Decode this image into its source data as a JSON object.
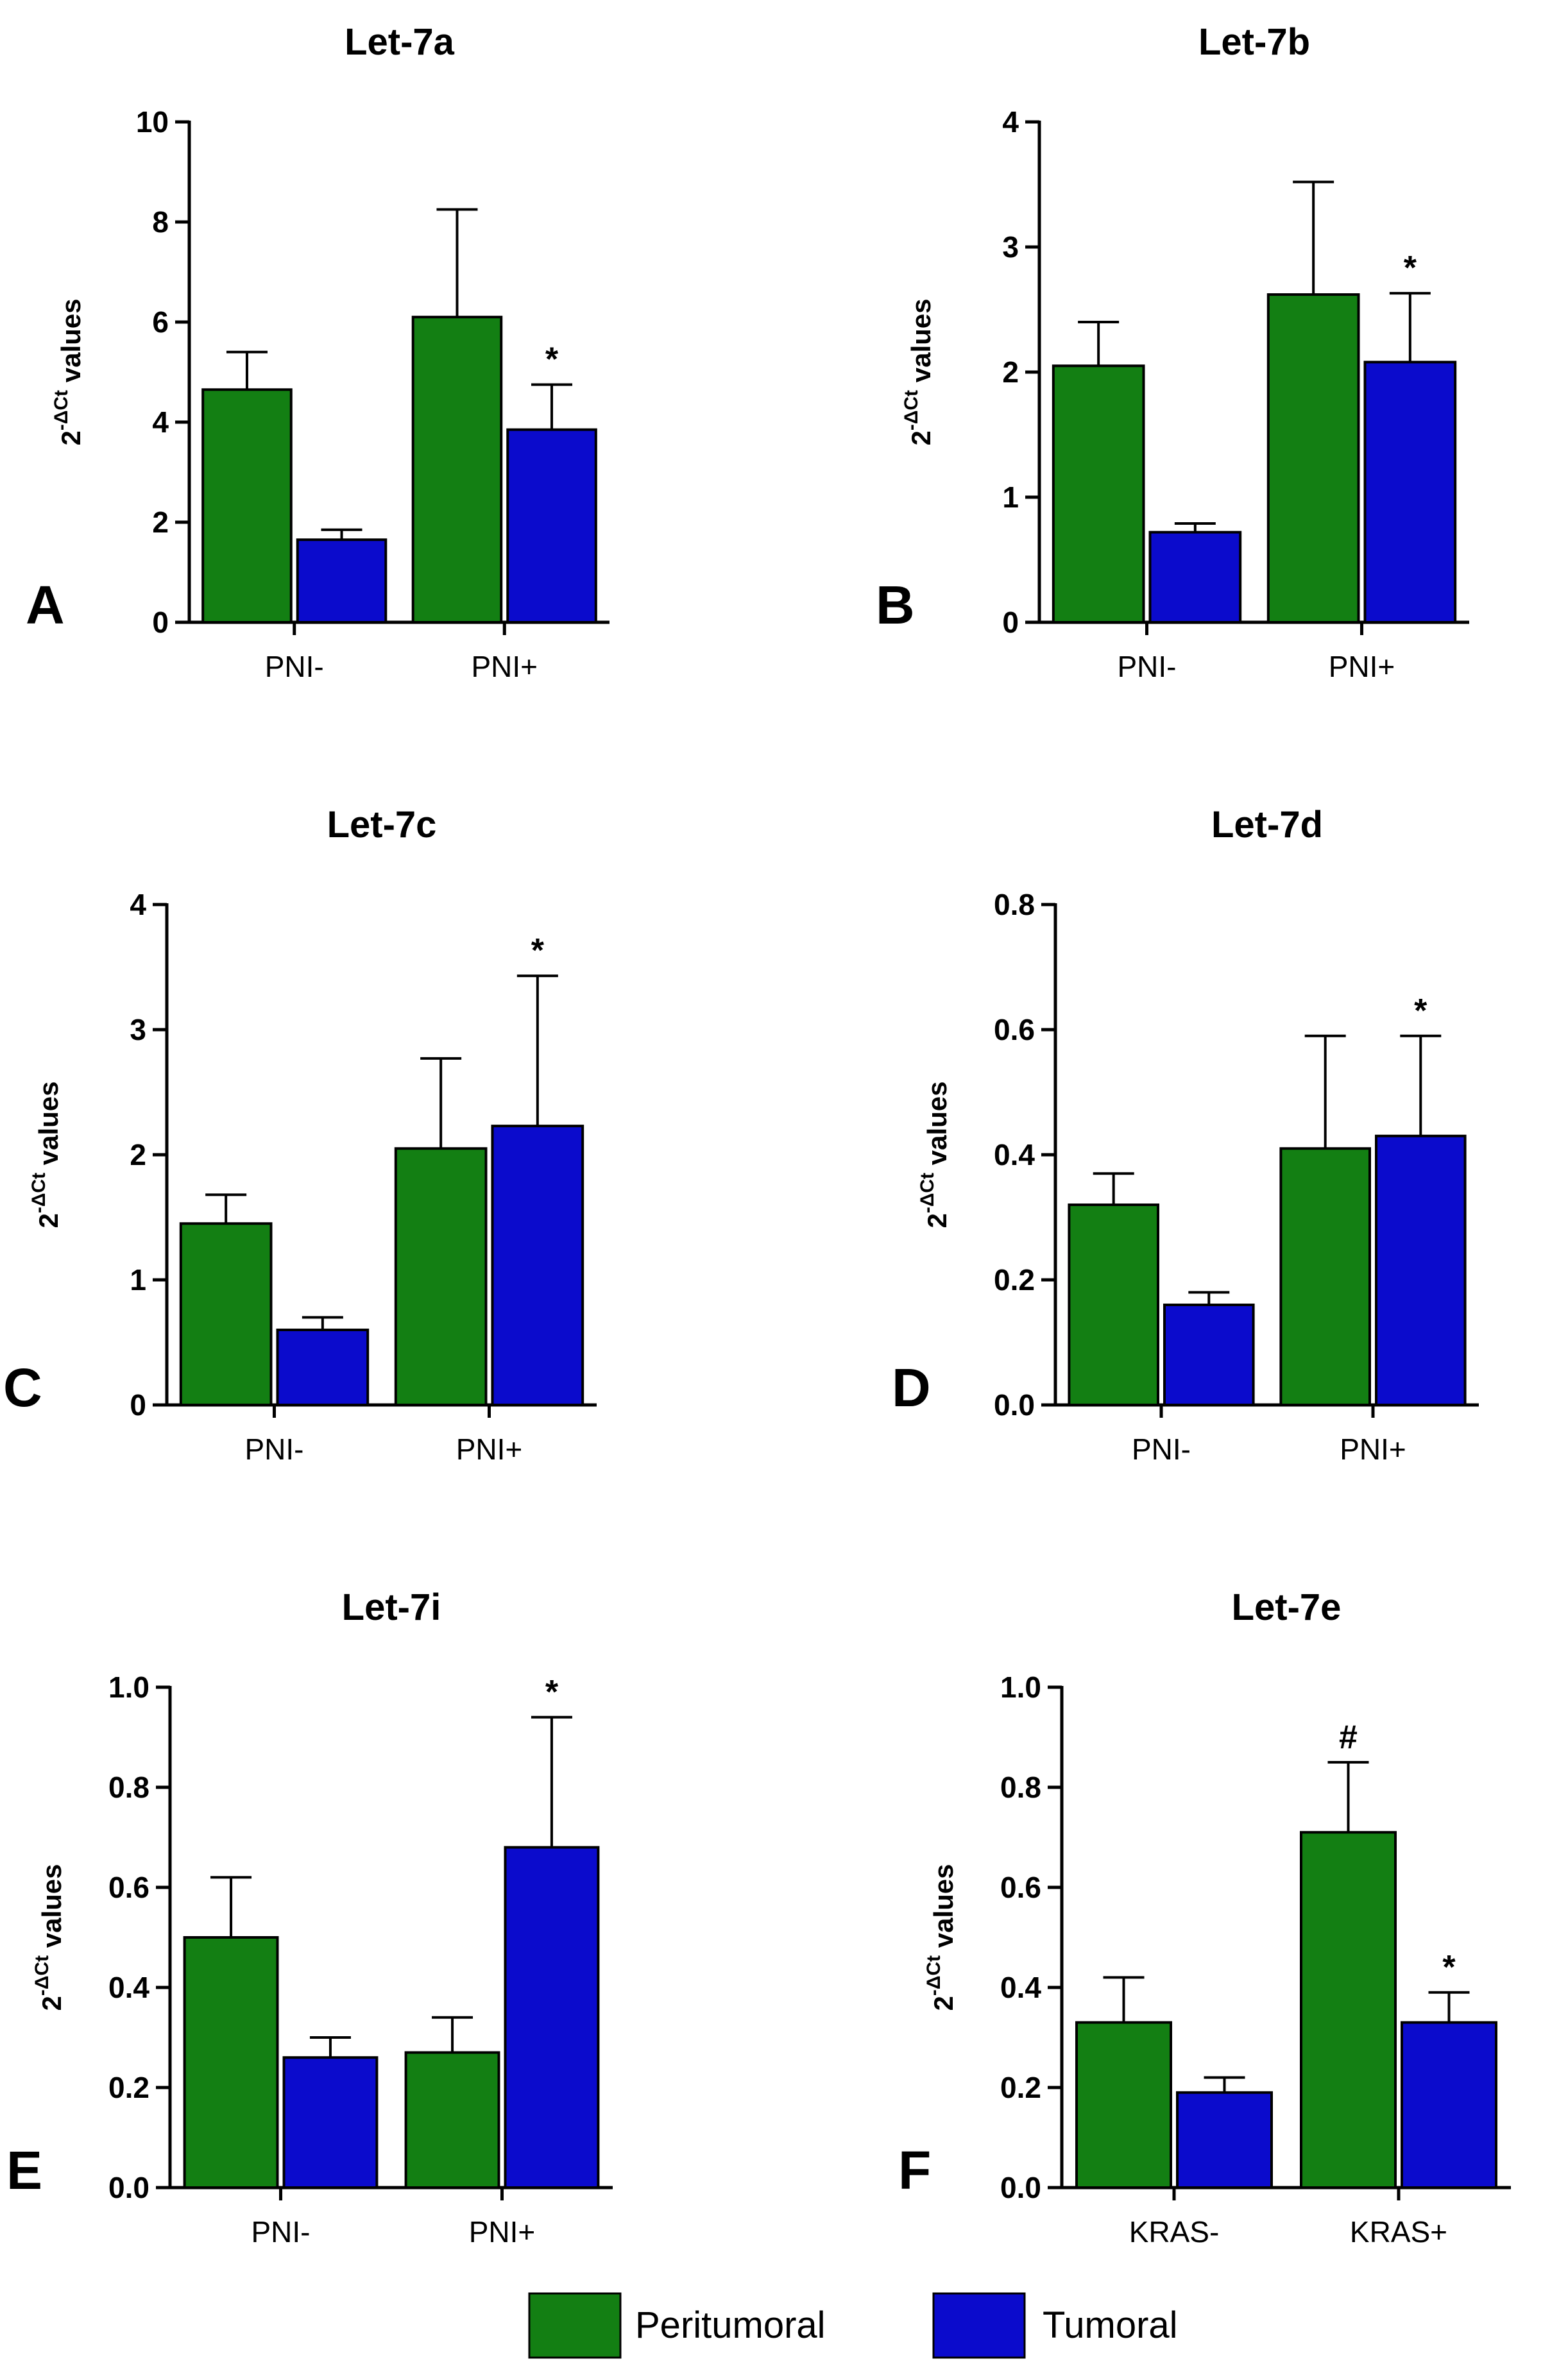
{
  "colors": {
    "peritumoral": "#137f13",
    "tumoral": "#0b0bcc",
    "axis": "#000000"
  },
  "legend": {
    "series": [
      "Peritumoral",
      "Tumoral"
    ]
  },
  "ylabel": {
    "base": "2",
    "sup": "-ΔCt",
    "text": " values"
  },
  "chart_data": [
    {
      "type": "bar",
      "panel": "A",
      "title": "Let-7a",
      "ylim": [
        0,
        10
      ],
      "yticks": [
        0,
        2,
        4,
        6,
        8,
        10
      ],
      "categories": [
        "PNI-",
        "PNI+"
      ],
      "series": [
        {
          "name": "Peritumoral",
          "values": [
            4.65,
            6.1
          ],
          "errors": [
            0.75,
            2.15
          ]
        },
        {
          "name": "Tumoral",
          "values": [
            1.65,
            3.85
          ],
          "errors": [
            0.2,
            0.9
          ]
        }
      ],
      "annotations": [
        {
          "text": "*",
          "category": 1,
          "series": 1
        }
      ]
    },
    {
      "type": "bar",
      "panel": "B",
      "title": "Let-7b",
      "ylim": [
        0,
        4
      ],
      "yticks": [
        0,
        1,
        2,
        3,
        4
      ],
      "categories": [
        "PNI-",
        "PNI+"
      ],
      "series": [
        {
          "name": "Peritumoral",
          "values": [
            2.05,
            2.62
          ],
          "errors": [
            0.35,
            0.9
          ]
        },
        {
          "name": "Tumoral",
          "values": [
            0.72,
            2.08
          ],
          "errors": [
            0.07,
            0.55
          ]
        }
      ],
      "annotations": [
        {
          "text": "*",
          "category": 1,
          "series": 1
        }
      ]
    },
    {
      "type": "bar",
      "panel": "C",
      "title": "Let-7c",
      "ylim": [
        0,
        4
      ],
      "yticks": [
        0,
        1,
        2,
        3,
        4
      ],
      "categories": [
        "PNI-",
        "PNI+"
      ],
      "series": [
        {
          "name": "Peritumoral",
          "values": [
            1.45,
            2.05
          ],
          "errors": [
            0.23,
            0.72
          ]
        },
        {
          "name": "Tumoral",
          "values": [
            0.6,
            2.23
          ],
          "errors": [
            0.1,
            1.2
          ]
        }
      ],
      "annotations": [
        {
          "text": "*",
          "category": 1,
          "series": 1
        }
      ]
    },
    {
      "type": "bar",
      "panel": "D",
      "title": "Let-7d",
      "ylim": [
        0,
        0.8
      ],
      "yticks": [
        "0.0",
        "0.2",
        "0.4",
        "0.6",
        "0.8"
      ],
      "categories": [
        "PNI-",
        "PNI+"
      ],
      "series": [
        {
          "name": "Peritumoral",
          "values": [
            0.32,
            0.41
          ],
          "errors": [
            0.05,
            0.18
          ]
        },
        {
          "name": "Tumoral",
          "values": [
            0.16,
            0.43
          ],
          "errors": [
            0.02,
            0.16
          ]
        }
      ],
      "annotations": [
        {
          "text": "*",
          "category": 1,
          "series": 1
        }
      ]
    },
    {
      "type": "bar",
      "panel": "E",
      "title": "Let-7i",
      "ylim": [
        0,
        1.0
      ],
      "yticks": [
        "0.0",
        "0.2",
        "0.4",
        "0.6",
        "0.8",
        "1.0"
      ],
      "categories": [
        "PNI-",
        "PNI+"
      ],
      "series": [
        {
          "name": "Peritumoral",
          "values": [
            0.5,
            0.27
          ],
          "errors": [
            0.12,
            0.07
          ]
        },
        {
          "name": "Tumoral",
          "values": [
            0.26,
            0.68
          ],
          "errors": [
            0.04,
            0.26
          ]
        }
      ],
      "annotations": [
        {
          "text": "*",
          "category": 1,
          "series": 1
        }
      ]
    },
    {
      "type": "bar",
      "panel": "F",
      "title": "Let-7e",
      "ylim": [
        0,
        1.0
      ],
      "yticks": [
        "0.0",
        "0.2",
        "0.4",
        "0.6",
        "0.8",
        "1.0"
      ],
      "categories": [
        "KRAS-",
        "KRAS+"
      ],
      "series": [
        {
          "name": "Peritumoral",
          "values": [
            0.33,
            0.71
          ],
          "errors": [
            0.09,
            0.14
          ]
        },
        {
          "name": "Tumoral",
          "values": [
            0.19,
            0.33
          ],
          "errors": [
            0.03,
            0.06
          ]
        }
      ],
      "annotations": [
        {
          "text": "#",
          "category": 1,
          "series": 0
        },
        {
          "text": "*",
          "category": 1,
          "series": 1
        }
      ]
    }
  ]
}
